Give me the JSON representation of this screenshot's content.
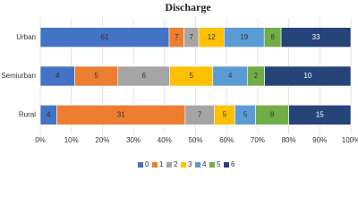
{
  "chart_data": {
    "type": "bar",
    "orientation": "horizontal",
    "stacking": "percent",
    "title": "Discharge",
    "categories": [
      "Urban",
      "Semiurban",
      "Rural"
    ],
    "series": [
      {
        "name": "0",
        "color": "#4472c4",
        "values": [
          61,
          4,
          4
        ]
      },
      {
        "name": "1",
        "color": "#ed7d31",
        "values": [
          7,
          5,
          31
        ]
      },
      {
        "name": "2",
        "color": "#a5a5a5",
        "values": [
          7,
          6,
          7
        ]
      },
      {
        "name": "3",
        "color": "#ffc000",
        "values": [
          12,
          5,
          5
        ]
      },
      {
        "name": "4",
        "color": "#5b9bd5",
        "values": [
          19,
          4,
          5
        ]
      },
      {
        "name": "5",
        "color": "#70ad47",
        "values": [
          8,
          2,
          8
        ]
      },
      {
        "name": "6",
        "color": "#264478",
        "values": [
          33,
          10,
          15
        ]
      }
    ],
    "xlim": [
      0,
      100
    ],
    "xticks": [
      {
        "value": 0,
        "label": "0%"
      },
      {
        "value": 10,
        "label": "10%"
      },
      {
        "value": 20,
        "label": "20%"
      },
      {
        "value": 30,
        "label": "30%"
      },
      {
        "value": 40,
        "label": "40%"
      },
      {
        "value": 50,
        "label": "50%"
      },
      {
        "value": 60,
        "label": "60%"
      },
      {
        "value": 70,
        "label": "70%"
      },
      {
        "value": 80,
        "label": "80%"
      },
      {
        "value": 90,
        "label": "90%"
      },
      {
        "value": 100,
        "label": "100%"
      }
    ],
    "grid": true,
    "legend": "bottom"
  }
}
